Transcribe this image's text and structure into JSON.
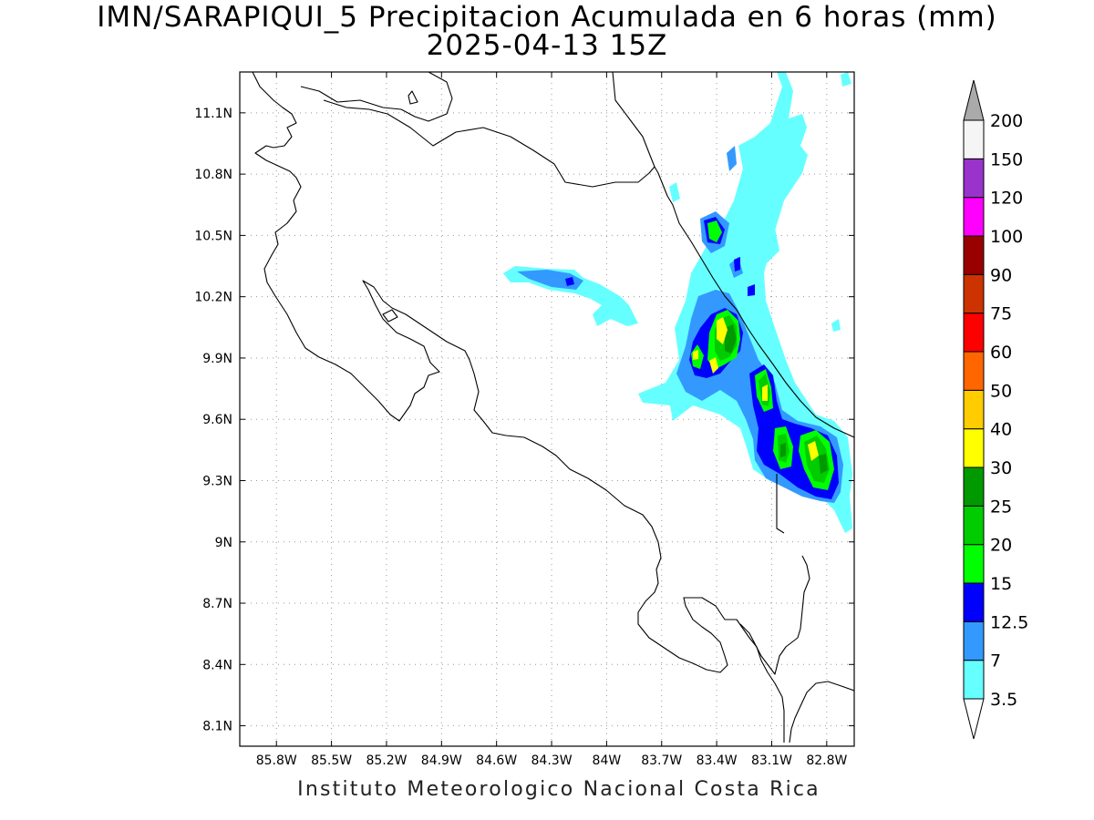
{
  "title": {
    "line1": "IMN/SARAPIQUI_5 Precipitacion Acumulada en 6 horas (mm)",
    "line2": "2025-04-13 15Z"
  },
  "credit": "Instituto Meteorologico Nacional Costa Rica",
  "map": {
    "lon_range": [
      -86.0,
      -82.65
    ],
    "lat_range": [
      8.0,
      11.3
    ],
    "lon_ticks": [
      {
        "value": -85.8,
        "label": "85.8W"
      },
      {
        "value": -85.5,
        "label": "85.5W"
      },
      {
        "value": -85.2,
        "label": "85.2W"
      },
      {
        "value": -84.9,
        "label": "84.9W"
      },
      {
        "value": -84.6,
        "label": "84.6W"
      },
      {
        "value": -84.3,
        "label": "84.3W"
      },
      {
        "value": -84.0,
        "label": "84W"
      },
      {
        "value": -83.7,
        "label": "83.7W"
      },
      {
        "value": -83.4,
        "label": "83.4W"
      },
      {
        "value": -83.1,
        "label": "83.1W"
      },
      {
        "value": -82.8,
        "label": "82.8W"
      }
    ],
    "lat_ticks": [
      {
        "value": 11.1,
        "label": "11.1N"
      },
      {
        "value": 10.8,
        "label": "10.8N"
      },
      {
        "value": 10.5,
        "label": "10.5N"
      },
      {
        "value": 10.2,
        "label": "10.2N"
      },
      {
        "value": 9.9,
        "label": "9.9N"
      },
      {
        "value": 9.6,
        "label": "9.6N"
      },
      {
        "value": 9.3,
        "label": "9.3N"
      },
      {
        "value": 9.0,
        "label": "9N"
      },
      {
        "value": 8.7,
        "label": "8.7N"
      },
      {
        "value": 8.4,
        "label": "8.4N"
      },
      {
        "value": 8.1,
        "label": "8.1N"
      }
    ],
    "grid": "dotted"
  },
  "colorbar": {
    "levels": [
      "3.5",
      "7",
      "12.5",
      "15",
      "20",
      "25",
      "30",
      "40",
      "50",
      "60",
      "75",
      "90",
      "100",
      "120",
      "150",
      "200"
    ],
    "colors": [
      "#66ffff",
      "#3399ff",
      "#0000ff",
      "#00ff00",
      "#00cc00",
      "#009900",
      "#ffff00",
      "#ffcc00",
      "#ff6600",
      "#ff0000",
      "#cc3300",
      "#990000",
      "#ff00ff",
      "#9933cc",
      "#f5f5f5"
    ],
    "over_color": "#aaaaaa",
    "under_color": "#ffffff"
  },
  "precip_colors": {
    "c1": "#66ffff",
    "c2": "#3399ff",
    "c3": "#0000ff",
    "c4": "#00ff00",
    "c5": "#00cc00",
    "c6": "#009900",
    "c7": "#ffff00"
  }
}
